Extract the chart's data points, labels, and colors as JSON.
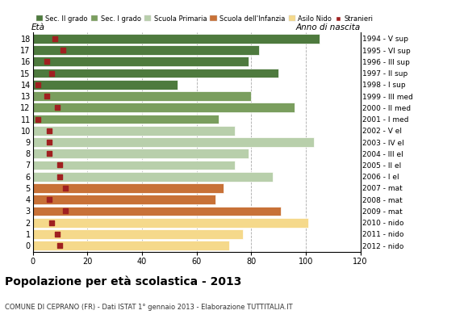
{
  "ages": [
    18,
    17,
    16,
    15,
    14,
    13,
    12,
    11,
    10,
    9,
    8,
    7,
    6,
    5,
    4,
    3,
    2,
    1,
    0
  ],
  "years": [
    "1994 - V sup",
    "1995 - VI sup",
    "1996 - III sup",
    "1997 - II sup",
    "1998 - I sup",
    "1999 - III med",
    "2000 - II med",
    "2001 - I med",
    "2002 - V el",
    "2003 - IV el",
    "2004 - III el",
    "2005 - II el",
    "2006 - I el",
    "2007 - mat",
    "2008 - mat",
    "2009 - mat",
    "2010 - nido",
    "2011 - nido",
    "2012 - nido"
  ],
  "values": [
    105,
    83,
    79,
    90,
    53,
    80,
    96,
    68,
    74,
    103,
    79,
    74,
    88,
    70,
    67,
    91,
    101,
    77,
    72
  ],
  "stranieri": [
    8,
    11,
    5,
    7,
    2,
    5,
    9,
    2,
    6,
    6,
    6,
    10,
    10,
    12,
    6,
    12,
    7,
    9,
    10
  ],
  "bar_colors": [
    "#4e7a3e",
    "#4e7a3e",
    "#4e7a3e",
    "#4e7a3e",
    "#4e7a3e",
    "#7a9e5e",
    "#7a9e5e",
    "#7a9e5e",
    "#b8cfab",
    "#b8cfab",
    "#b8cfab",
    "#b8cfab",
    "#b8cfab",
    "#c87137",
    "#c87137",
    "#c87137",
    "#f5d98b",
    "#f5d98b",
    "#f5d98b"
  ],
  "legend_labels": [
    "Sec. II grado",
    "Sec. I grado",
    "Scuola Primaria",
    "Scuola dell'Infanzia",
    "Asilo Nido",
    "Stranieri"
  ],
  "legend_colors": [
    "#4e7a3e",
    "#7a9e5e",
    "#b8cfab",
    "#c87137",
    "#f5d98b",
    "#a02020"
  ],
  "title": "Popolazione per età scolastica - 2013",
  "subtitle": "COMUNE DI CEPRANO (FR) - Dati ISTAT 1° gennaio 2013 - Elaborazione TUTTITALIA.IT",
  "xlabel_left": "Età",
  "xlabel_right": "Anno di nascita",
  "xlim": [
    0,
    120
  ],
  "xticks": [
    0,
    20,
    40,
    60,
    80,
    100,
    120
  ],
  "grid_color": "#aaaaaa",
  "bg_color": "#ffffff",
  "bar_height": 0.82,
  "stranieri_color": "#a02020",
  "stranieri_size": 18
}
